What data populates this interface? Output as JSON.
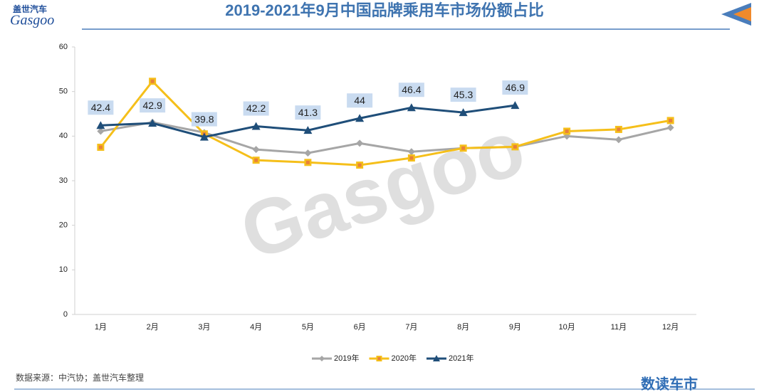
{
  "header": {
    "logo": "盖世汽车",
    "logo_sub": "Gasgoo"
  },
  "chart_data": {
    "type": "line",
    "title": "2019-2021年9月中国品牌乘用车市场份额占比",
    "categories": [
      "1月",
      "2月",
      "3月",
      "4月",
      "5月",
      "6月",
      "7月",
      "8月",
      "9月",
      "10月",
      "11月",
      "12月"
    ],
    "series": [
      {
        "name": "2019年",
        "color": "#a6a6a6",
        "marker": "diamond",
        "values": [
          41.1,
          43.1,
          40.8,
          37.0,
          36.2,
          38.4,
          36.5,
          37.3,
          37.6,
          40.0,
          39.2,
          41.9
        ]
      },
      {
        "name": "2020年",
        "color": "#f5bf1a",
        "marker": "square",
        "values": [
          37.5,
          52.3,
          40.5,
          34.6,
          34.1,
          33.5,
          35.1,
          37.3,
          37.6,
          41.1,
          41.5,
          43.5
        ]
      },
      {
        "name": "2021年",
        "color": "#1f4e79",
        "marker": "triangle",
        "data_labels": true,
        "values": [
          42.4,
          42.9,
          39.8,
          42.2,
          41.3,
          44,
          46.4,
          45.3,
          46.9,
          null,
          null,
          null
        ]
      }
    ],
    "ylim": [
      0,
      60
    ],
    "yticks": [
      0,
      10,
      20,
      30,
      40,
      50,
      60
    ],
    "grid": false,
    "legend": "bottom"
  },
  "source": "数据来源：中汽协；盖世汽车整理",
  "footer_logo": "数读车市"
}
